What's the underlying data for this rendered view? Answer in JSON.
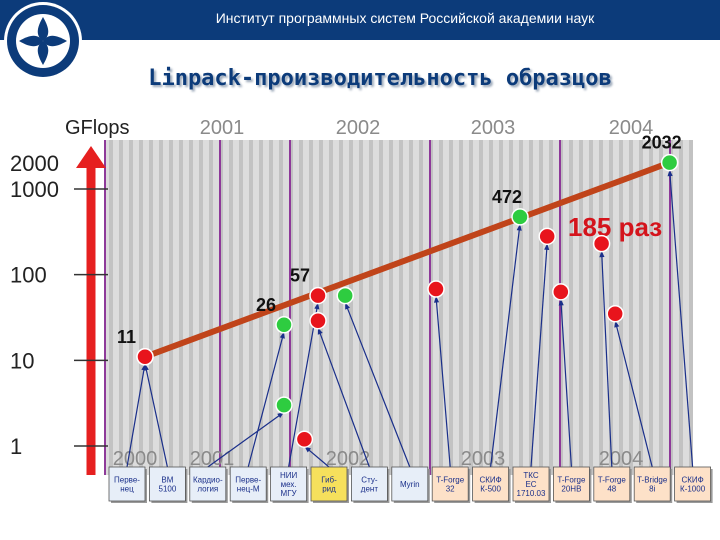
{
  "header": {
    "institute": "Институт программных систем Российской академии наук"
  },
  "title": "Linpack-производительность образцов",
  "chart_data": {
    "type": "scatter",
    "yscale": "log",
    "ylabel": "GFlops",
    "ylim": [
      1,
      2000
    ],
    "y_ticks": [
      "1",
      "10",
      "100",
      "1000",
      "2000"
    ],
    "xlim": [
      2000,
      2004.4
    ],
    "x_ticks": [
      "2000",
      "2001",
      "2002",
      "2003",
      "2004"
    ],
    "annotation": "185 раз",
    "colors": {
      "green": "#2ecc40",
      "red": "#e8141c",
      "trend": "#c0441a",
      "arrow": "#e62020"
    },
    "trend_line": {
      "x": [
        2000.0,
        2004.1
      ],
      "y": [
        11,
        2032
      ]
    },
    "points": [
      {
        "label": "Перве-нец",
        "x": 2000.0,
        "y": 11,
        "value_label": "11",
        "color": "green"
      },
      {
        "label": "ВМ 5100",
        "x": 2000.0,
        "y": 11,
        "value_label": "",
        "color": "red"
      },
      {
        "label": "Кардио-логия",
        "x": 2001.0,
        "y": 3,
        "value_label": "",
        "color": "green"
      },
      {
        "label": "Перве-нец-М",
        "x": 2001.0,
        "y": 26,
        "value_label": "26",
        "color": "green"
      },
      {
        "label": "НИИ мех. МГУ",
        "x": 2001.5,
        "y": 57,
        "value_label": "57",
        "color": "red"
      },
      {
        "label": "Гиб-рид",
        "x": 2001.3,
        "y": 1.2,
        "value_label": "",
        "color": "red"
      },
      {
        "label": "Сту-дент",
        "x": 2001.5,
        "y": 29,
        "value_label": "",
        "color": "red"
      },
      {
        "label": "Myrin",
        "x": 2001.9,
        "y": 57,
        "value_label": "",
        "color": "green"
      },
      {
        "label": "T-Forge 32",
        "x": 2002.5,
        "y": 68,
        "value_label": "",
        "color": "red"
      },
      {
        "label": "СКИФ К-500",
        "x": 2003.0,
        "y": 472,
        "value_label": "472",
        "color": "green"
      },
      {
        "label": "ТКС ЕС 1710.03",
        "x": 2003.2,
        "y": 280,
        "value_label": "",
        "color": "red"
      },
      {
        "label": "T-Forge 20НВ",
        "x": 2003.3,
        "y": 63,
        "value_label": "",
        "color": "red"
      },
      {
        "label": "T-Forge 48",
        "x": 2003.6,
        "y": 230,
        "value_label": "",
        "color": "red"
      },
      {
        "label": "T-Bridge 8i",
        "x": 2003.7,
        "y": 35,
        "value_label": "",
        "color": "red"
      },
      {
        "label": "СКИФ К-1000",
        "x": 2004.1,
        "y": 2032,
        "value_label": "2032",
        "color": "green"
      }
    ]
  }
}
